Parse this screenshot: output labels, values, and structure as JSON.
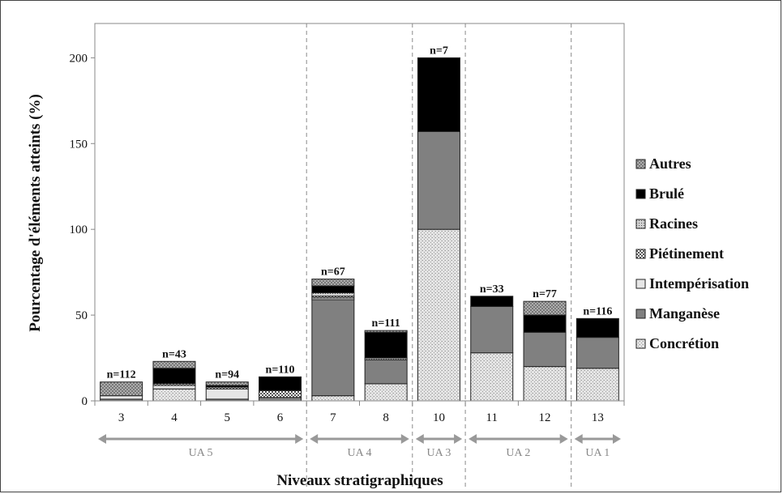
{
  "chart_data": {
    "type": "bar",
    "stacked": true,
    "xlabel": "Niveaux stratigraphiques",
    "ylabel": "Pourcentage d'éléments atteints (%)",
    "ylim": [
      0,
      220
    ],
    "yticks": [
      0,
      50,
      100,
      150,
      200
    ],
    "grid": false,
    "legend_position": "right",
    "categories": [
      "3",
      "4",
      "5",
      "6",
      "7",
      "8",
      "10",
      "11",
      "12",
      "13"
    ],
    "n_labels": [
      "n=112",
      "n=43",
      "n=94",
      "n=110",
      "n=67",
      "n=111",
      "n=7",
      "n=33",
      "n=77",
      "n=116"
    ],
    "series": [
      {
        "name": "Concrétion",
        "color": "#dcdcdc",
        "pattern": "speckle",
        "values": [
          0,
          7,
          0,
          0,
          3,
          10,
          100,
          28,
          20,
          19
        ]
      },
      {
        "name": "Manganèse",
        "color": "#808080",
        "pattern": "solid",
        "values": [
          1,
          0,
          1,
          2,
          56,
          14,
          57,
          27,
          20,
          18
        ]
      },
      {
        "name": "Intempérisation",
        "color": "#e6e6e6",
        "pattern": "solid",
        "values": [
          2,
          2,
          6,
          0,
          1,
          0,
          0,
          0,
          0,
          0
        ]
      },
      {
        "name": "Piétinement",
        "color": "#ffffff",
        "pattern": "checker",
        "values": [
          0,
          1,
          1,
          4,
          1,
          0,
          0,
          0,
          0,
          0
        ]
      },
      {
        "name": "Racines",
        "color": "#bbbbbb",
        "pattern": "dots",
        "values": [
          0,
          0,
          0,
          0,
          2,
          1,
          0,
          0,
          0,
          0
        ]
      },
      {
        "name": "Brulé",
        "color": "#000000",
        "pattern": "solid",
        "values": [
          0,
          9,
          1,
          8,
          4,
          15,
          43,
          6,
          10,
          11
        ]
      },
      {
        "name": "Autres",
        "color": "#a8a8a8",
        "pattern": "crosshatch",
        "values": [
          8,
          4,
          2,
          0,
          4,
          1,
          0,
          0,
          8,
          0
        ]
      }
    ],
    "groups": [
      {
        "label": "UA 5",
        "from": 0,
        "to": 3
      },
      {
        "label": "UA 4",
        "from": 4,
        "to": 5
      },
      {
        "label": "UA 3",
        "from": 6,
        "to": 6
      },
      {
        "label": "UA 2",
        "from": 7,
        "to": 8
      },
      {
        "label": "UA 1",
        "from": 9,
        "to": 9
      }
    ]
  }
}
